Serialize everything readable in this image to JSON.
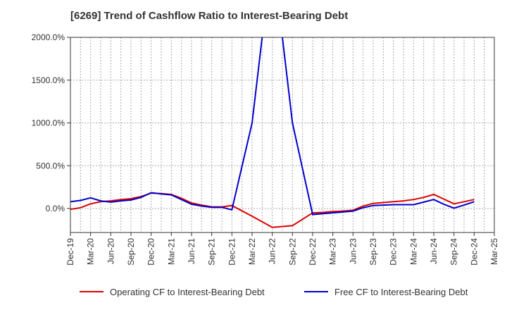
{
  "title": "[6269]  Trend of Cashflow Ratio to Interest-Bearing Debt",
  "colors": {
    "operating": "#dd0000",
    "free": "#0000cc",
    "grid": "#aaaaaa",
    "axis": "#333333"
  },
  "chart_data": {
    "type": "line",
    "title": "[6269]  Trend of Cashflow Ratio to Interest-Bearing Debt",
    "xlabel": "",
    "ylabel": "",
    "ylim": [
      -280,
      2000
    ],
    "y_ticks": [
      0,
      500,
      1000,
      1500,
      2000
    ],
    "y_tick_labels": [
      "0.0%",
      "500.0%",
      "1000.0%",
      "1500.0%",
      "2000.0%"
    ],
    "x_tick_labels": [
      "Dec-19",
      "Mar-20",
      "Jun-20",
      "Sep-20",
      "Dec-20",
      "Mar-21",
      "Jun-21",
      "Sep-21",
      "Dec-21",
      "Mar-22",
      "Jun-22",
      "Sep-22",
      "Dec-22",
      "Mar-23",
      "Jun-23",
      "Sep-23",
      "Dec-23",
      "Mar-24",
      "Jun-24",
      "Sep-24",
      "Dec-24",
      "Mar-25"
    ],
    "grid": true,
    "legend_position": "bottom",
    "x": [
      "Dec-19",
      "Mar-20",
      "Jun-20",
      "Sep-20",
      "Dec-20",
      "Mar-21",
      "Jun-21",
      "Sep-21",
      "Dec-21",
      "Mar-22",
      "Jun-22",
      "Sep-22",
      "Dec-22",
      "Mar-23",
      "Jun-23",
      "Sep-23",
      "Dec-23",
      "Mar-24",
      "Jun-24",
      "Sep-24",
      "Dec-24"
    ],
    "series": [
      {
        "name": "Operating CF to Interest-Bearing Debt",
        "color": "#dd0000",
        "points": [
          [
            0,
            -10
          ],
          [
            0.5,
            10
          ],
          [
            1,
            55
          ],
          [
            1.5,
            80
          ],
          [
            2,
            90
          ],
          [
            2.5,
            105
          ],
          [
            3,
            115
          ],
          [
            3.5,
            140
          ],
          [
            4,
            180
          ],
          [
            4.5,
            175
          ],
          [
            5,
            165
          ],
          [
            5.5,
            120
          ],
          [
            6,
            65
          ],
          [
            6.5,
            40
          ],
          [
            7,
            20
          ],
          [
            7.5,
            20
          ],
          [
            8,
            35
          ],
          [
            9,
            -90
          ],
          [
            10,
            -220
          ],
          [
            11,
            -200
          ],
          [
            12,
            -50
          ],
          [
            12.5,
            -45
          ],
          [
            13,
            -35
          ],
          [
            13.5,
            -30
          ],
          [
            14,
            -20
          ],
          [
            14.5,
            30
          ],
          [
            15,
            60
          ],
          [
            15.5,
            70
          ],
          [
            16,
            80
          ],
          [
            16.5,
            90
          ],
          [
            17,
            105
          ],
          [
            17.5,
            130
          ],
          [
            18,
            165
          ],
          [
            18.5,
            110
          ],
          [
            19,
            55
          ],
          [
            19.5,
            80
          ],
          [
            20,
            105
          ]
        ]
      },
      {
        "name": "Free CF to Interest-Bearing Debt",
        "color": "#0000cc",
        "points": [
          [
            0,
            80
          ],
          [
            0.5,
            95
          ],
          [
            1,
            125
          ],
          [
            1.5,
            90
          ],
          [
            2,
            75
          ],
          [
            2.5,
            90
          ],
          [
            3,
            100
          ],
          [
            3.5,
            130
          ],
          [
            4,
            185
          ],
          [
            4.5,
            170
          ],
          [
            5,
            160
          ],
          [
            5.5,
            105
          ],
          [
            6,
            50
          ],
          [
            6.5,
            30
          ],
          [
            7,
            15
          ],
          [
            7.5,
            15
          ],
          [
            8,
            -15
          ],
          [
            9,
            1000
          ],
          [
            9.5,
            2000
          ],
          [
            10,
            2800
          ],
          [
            10.5,
            2000
          ],
          [
            11,
            1000
          ],
          [
            12,
            -70
          ],
          [
            12.5,
            -60
          ],
          [
            13,
            -50
          ],
          [
            13.5,
            -40
          ],
          [
            14,
            -30
          ],
          [
            14.5,
            10
          ],
          [
            15,
            35
          ],
          [
            15.5,
            40
          ],
          [
            16,
            45
          ],
          [
            16.5,
            45
          ],
          [
            17,
            45
          ],
          [
            17.5,
            75
          ],
          [
            18,
            105
          ],
          [
            18.5,
            50
          ],
          [
            19,
            5
          ],
          [
            19.5,
            40
          ],
          [
            20,
            80
          ]
        ]
      }
    ]
  }
}
